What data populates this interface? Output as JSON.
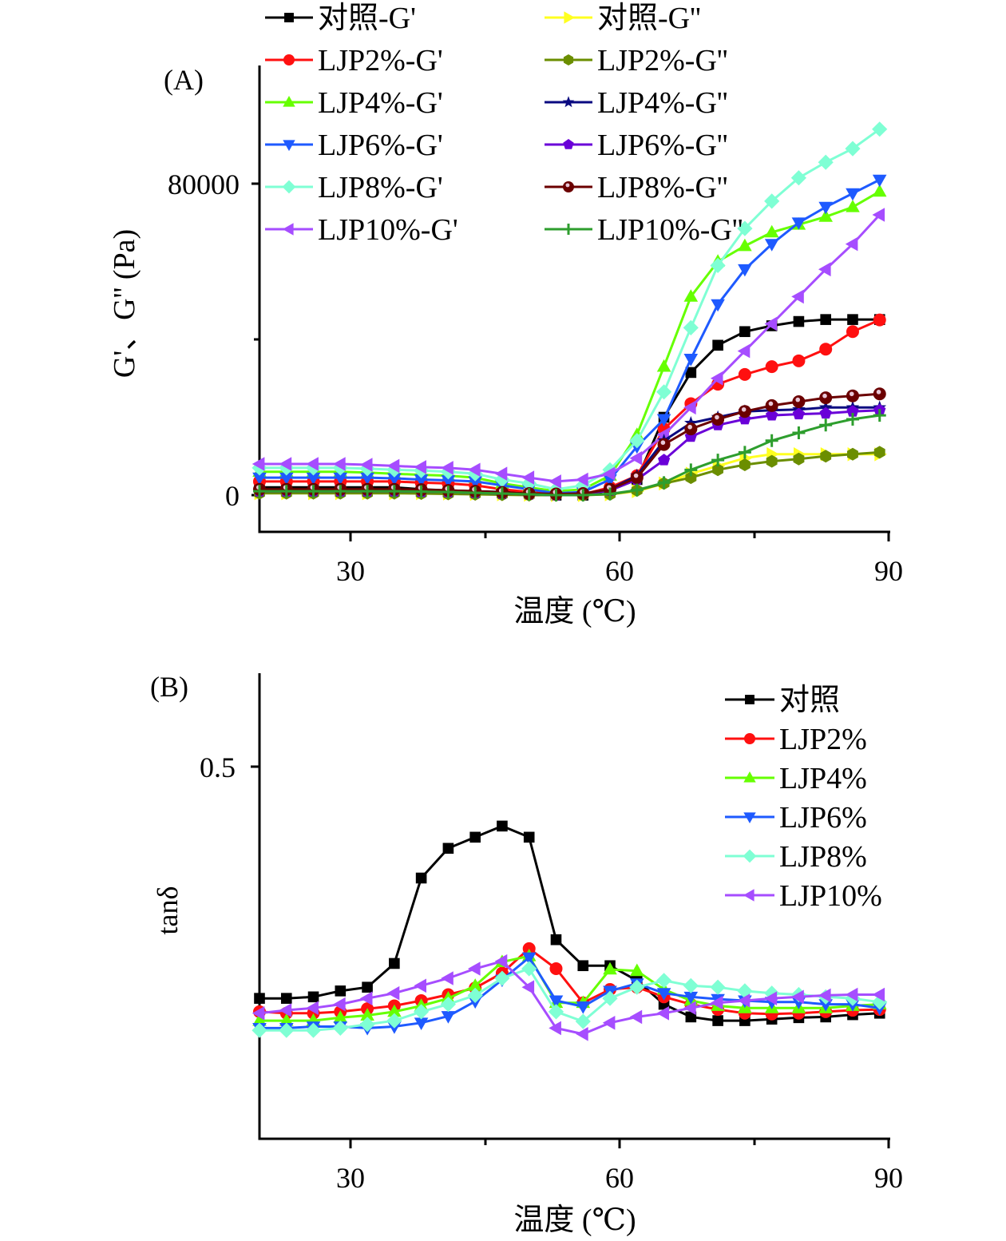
{
  "chart_data": [
    {
      "panel": "(A)",
      "type": "line",
      "xlabel": "温度 (℃)",
      "ylabel": "G'、G'' (Pa)",
      "xlim": [
        20,
        90
      ],
      "ylim": [
        -9000,
        110000
      ],
      "xticks": [
        30,
        60,
        90
      ],
      "yticks": [
        0,
        80000
      ],
      "minor_yticks": [
        40000
      ],
      "minor_xticks": [
        45,
        75
      ],
      "legend_placement": "top",
      "x": [
        20,
        23,
        26,
        29,
        32,
        35,
        38,
        41,
        44,
        47,
        50,
        53,
        56,
        59,
        62,
        65,
        68,
        71,
        74,
        77,
        80,
        83,
        86,
        89
      ],
      "series": [
        {
          "name": "对照-G'",
          "color": "#000000",
          "marker": "square",
          "values": [
            2000,
            2000,
            2000,
            2000,
            2000,
            2000,
            1500,
            1200,
            1000,
            800,
            500,
            0,
            0,
            1200,
            4000,
            20000,
            31500,
            38500,
            42000,
            43500,
            44600,
            45100,
            45100,
            45100
          ]
        },
        {
          "name": "LJP2%-G'",
          "color": "#ff1010",
          "marker": "circle",
          "values": [
            3500,
            3500,
            3500,
            3500,
            3500,
            3500,
            3200,
            3000,
            2500,
            1500,
            800,
            200,
            200,
            2000,
            5000,
            17000,
            23500,
            28500,
            31000,
            33000,
            34500,
            37500,
            42000,
            45000
          ]
        },
        {
          "name": "LJP4%-G'",
          "color": "#66ff00",
          "marker": "triangle-up",
          "values": [
            6000,
            6000,
            6000,
            6000,
            5800,
            5500,
            5200,
            5000,
            4500,
            3000,
            2000,
            1000,
            1500,
            5000,
            15500,
            33000,
            51000,
            60000,
            64000,
            67500,
            69500,
            71500,
            74000,
            78000
          ]
        },
        {
          "name": "LJP6%-G'",
          "color": "#1e5aff",
          "marker": "triangle-down",
          "values": [
            4500,
            4500,
            4500,
            4500,
            4500,
            4300,
            4000,
            3800,
            3500,
            2500,
            1500,
            500,
            800,
            4000,
            12500,
            19500,
            35000,
            49000,
            58000,
            64500,
            70000,
            74000,
            77500,
            81000
          ]
        },
        {
          "name": "LJP8%-G'",
          "color": "#7fffd4",
          "marker": "diamond",
          "values": [
            7000,
            7000,
            7000,
            7000,
            6800,
            6500,
            6300,
            6000,
            5500,
            4000,
            3000,
            1500,
            2500,
            6500,
            14000,
            26500,
            43000,
            59000,
            68500,
            75500,
            81500,
            85500,
            89000,
            94000
          ]
        },
        {
          "name": "LJP10%-G'",
          "color": "#a64dff",
          "marker": "triangle-left",
          "values": [
            8000,
            8000,
            8000,
            8000,
            7800,
            7500,
            7200,
            7000,
            6500,
            5500,
            4500,
            3500,
            4000,
            5500,
            9500,
            15500,
            22500,
            30000,
            37000,
            44000,
            51000,
            58000,
            64500,
            72000
          ]
        },
        {
          "name": "对照-G''",
          "color": "#ffff20",
          "marker": "triangle-right",
          "values": [
            500,
            500,
            500,
            500,
            500,
            500,
            500,
            400,
            300,
            200,
            100,
            0,
            0,
            200,
            1000,
            3000,
            5500,
            7500,
            9500,
            10500,
            10500,
            10500,
            10500,
            10500
          ]
        },
        {
          "name": "LJP2%-G''",
          "color": "#6b8e00",
          "marker": "hexagon",
          "values": [
            500,
            500,
            500,
            500,
            500,
            500,
            400,
            300,
            200,
            100,
            0,
            0,
            0,
            200,
            1200,
            3000,
            4500,
            6500,
            7800,
            8700,
            9300,
            10000,
            10500,
            11000
          ]
        },
        {
          "name": "LJP4%-G''",
          "color": "#0a0a80",
          "marker": "star",
          "values": [
            1000,
            1000,
            1000,
            1000,
            1000,
            1000,
            900,
            800,
            600,
            400,
            200,
            0,
            300,
            1500,
            5000,
            14000,
            18500,
            20000,
            21500,
            21800,
            22000,
            22500,
            22500,
            22500
          ]
        },
        {
          "name": "LJP6%-G''",
          "color": "#6a00d8",
          "marker": "pentagon",
          "values": [
            1000,
            1000,
            1000,
            1000,
            1000,
            1000,
            900,
            800,
            600,
            400,
            200,
            0,
            300,
            1200,
            4000,
            9000,
            15000,
            18000,
            19500,
            20500,
            20800,
            21000,
            21500,
            21800
          ]
        },
        {
          "name": "LJP8%-G''",
          "color": "#6b0000",
          "marker": "ball",
          "values": [
            1500,
            1500,
            1500,
            1500,
            1500,
            1500,
            1400,
            1200,
            1000,
            700,
            400,
            300,
            400,
            1500,
            4500,
            13000,
            17000,
            19500,
            21500,
            23000,
            24000,
            25000,
            25500,
            26000
          ]
        },
        {
          "name": "LJP10%-G''",
          "color": "#2e9e2e",
          "marker": "plus",
          "values": [
            1000,
            1000,
            1000,
            1000,
            1000,
            1000,
            900,
            800,
            600,
            400,
            200,
            0,
            0,
            300,
            1300,
            3200,
            6500,
            9000,
            11000,
            14000,
            16000,
            18000,
            19500,
            20500
          ]
        }
      ]
    },
    {
      "panel": "(B)",
      "type": "line",
      "xlabel": "温度 (℃)",
      "ylabel": "tanδ",
      "xlim": [
        20,
        90
      ],
      "ylim": [
        0,
        0.624
      ],
      "xticks": [
        30,
        60,
        90
      ],
      "yticks": [
        0.5
      ],
      "minor_xticks": [
        45,
        75
      ],
      "legend_placement": "top-right",
      "x": [
        20,
        23,
        26,
        29,
        32,
        35,
        38,
        41,
        44,
        47,
        50,
        53,
        56,
        59,
        62,
        65,
        68,
        71,
        74,
        77,
        80,
        83,
        86,
        89
      ],
      "series": [
        {
          "name": "对照",
          "color": "#000000",
          "marker": "square",
          "values": [
            0.188,
            0.188,
            0.19,
            0.198,
            0.203,
            0.235,
            0.35,
            0.39,
            0.405,
            0.42,
            0.405,
            0.267,
            0.232,
            0.232,
            0.212,
            0.18,
            0.163,
            0.158,
            0.158,
            0.16,
            0.162,
            0.163,
            0.166,
            0.168
          ]
        },
        {
          "name": "LJP2%",
          "color": "#ff1010",
          "marker": "circle",
          "values": [
            0.17,
            0.168,
            0.168,
            0.17,
            0.174,
            0.178,
            0.185,
            0.193,
            0.202,
            0.222,
            0.255,
            0.228,
            0.182,
            0.2,
            0.203,
            0.19,
            0.18,
            0.173,
            0.168,
            0.167,
            0.168,
            0.17,
            0.172,
            0.173
          ]
        },
        {
          "name": "LJP4%",
          "color": "#66ff00",
          "marker": "triangle-up",
          "values": [
            0.158,
            0.158,
            0.158,
            0.162,
            0.165,
            0.17,
            0.178,
            0.188,
            0.205,
            0.237,
            0.245,
            0.182,
            0.182,
            0.227,
            0.225,
            0.2,
            0.185,
            0.178,
            0.175,
            0.175,
            0.175,
            0.175,
            0.178,
            0.18
          ]
        },
        {
          "name": "LJP6%",
          "color": "#1e5aff",
          "marker": "triangle-down",
          "values": [
            0.148,
            0.148,
            0.15,
            0.15,
            0.148,
            0.15,
            0.155,
            0.164,
            0.184,
            0.213,
            0.243,
            0.185,
            0.177,
            0.198,
            0.208,
            0.195,
            0.19,
            0.187,
            0.185,
            0.183,
            0.183,
            0.18,
            0.18,
            0.175
          ]
        },
        {
          "name": "LJP8%",
          "color": "#7fffd4",
          "marker": "diamond",
          "values": [
            0.145,
            0.145,
            0.145,
            0.148,
            0.153,
            0.158,
            0.17,
            0.18,
            0.192,
            0.215,
            0.228,
            0.17,
            0.157,
            0.188,
            0.203,
            0.212,
            0.205,
            0.203,
            0.198,
            0.195,
            0.193,
            0.19,
            0.188,
            0.183
          ]
        },
        {
          "name": "LJP10%",
          "color": "#a64dff",
          "marker": "triangle-left",
          "values": [
            0.168,
            0.172,
            0.175,
            0.18,
            0.188,
            0.195,
            0.205,
            0.215,
            0.228,
            0.238,
            0.203,
            0.148,
            0.14,
            0.155,
            0.163,
            0.168,
            0.175,
            0.182,
            0.185,
            0.188,
            0.19,
            0.192,
            0.193,
            0.193
          ]
        }
      ]
    }
  ],
  "labels": {
    "panel_a": "(A)",
    "panel_b": "(B)",
    "a_ylabel": "G'、G'' (Pa)",
    "b_ylabel": "tanδ",
    "xlabel": "温度 (℃)",
    "a_ytick_0": "0",
    "a_ytick_80000": "80000",
    "b_ytick_05": "0.5",
    "xtick_30": "30",
    "xtick_60": "60",
    "xtick_90": "90"
  }
}
